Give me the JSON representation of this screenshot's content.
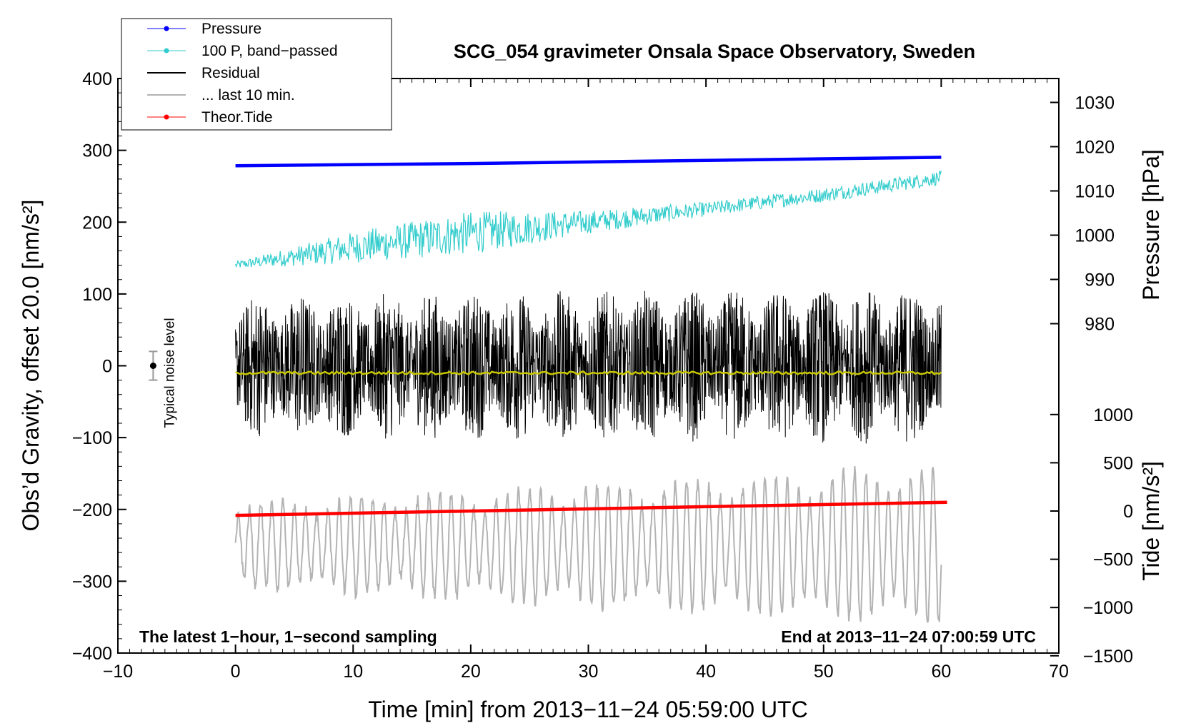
{
  "chart_data": {
    "type": "line",
    "title": "SCG_054 gravimeter Onsala Space Observatory, Sweden",
    "xlabel": "Time [min] from 2013−11−24 05:59:00 UTC",
    "xlim": [
      -10,
      70
    ],
    "x_ticks": [
      -10,
      0,
      10,
      20,
      30,
      40,
      50,
      60,
      70
    ],
    "x_tick_labels": [
      "−10",
      "0",
      "10",
      "20",
      "30",
      "40",
      "50",
      "60",
      "70"
    ],
    "ylabel_left": "Obs’d Gravity, offset 20.0 [nm/s²]",
    "ylim_left": [
      -400,
      400
    ],
    "y_ticks_left": [
      -400,
      -300,
      -200,
      -100,
      0,
      100,
      200,
      300,
      400
    ],
    "y_tick_labels_left": [
      "−400",
      "−300",
      "−200",
      "−100",
      "0",
      "100",
      "200",
      "300",
      "400"
    ],
    "ylabel_right_top": "Pressure [hPa]",
    "y_ticks_right_top": [
      980,
      990,
      1000,
      1010,
      1020,
      1030
    ],
    "y_tick_labels_right_top": [
      "980",
      "990",
      "1000",
      "1010",
      "1020",
      "1030"
    ],
    "ylabel_right_bottom": "Tide [nm/s²]",
    "y_ticks_right_bottom": [
      -1500,
      -1000,
      -500,
      0,
      500,
      1000
    ],
    "y_tick_labels_right_bottom": [
      "−1500",
      "−1000",
      "−500",
      "0",
      "500",
      "1000"
    ],
    "series": [
      {
        "name": "Pressure",
        "color": "#0000ff",
        "axis": "pressure_hPa",
        "x": [
          0,
          20,
          40,
          60
        ],
        "values": [
          1015.7,
          1016.2,
          1016.9,
          1017.6
        ]
      },
      {
        "name": "100 P, band−passed",
        "color": "#33cccc",
        "axis": "left_nm_s2",
        "x": [
          0,
          10,
          20,
          30,
          40,
          50,
          60
        ],
        "values": [
          140,
          165,
          185,
          200,
          218,
          238,
          262
        ],
        "oscillation_amplitude": [
          5,
          22,
          30,
          16,
          10,
          10,
          10
        ]
      },
      {
        "name": "Residual",
        "color": "#000000",
        "axis": "left_nm_s2",
        "x": [
          0,
          60
        ],
        "values": [
          0,
          0
        ],
        "oscillation_amplitude": [
          100,
          110
        ]
      },
      {
        "name": "... last 10 min.",
        "color": "#b3b3b3",
        "axis": "left_nm_s2",
        "x": [
          0,
          60
        ],
        "values": [
          -250,
          -250
        ],
        "oscillation_amplitude": [
          60,
          110
        ]
      },
      {
        "name": "Theor.Tide",
        "color": "#ff0000",
        "axis": "tide_nm_s2",
        "x": [
          0,
          20,
          40,
          60.5
        ],
        "values": [
          -45,
          0,
          45,
          90
        ]
      },
      {
        "name": "mean residual",
        "color": "#cccc00",
        "axis": "left_nm_s2",
        "x": [
          0,
          60
        ],
        "values": [
          -10,
          -10
        ],
        "in_legend": false
      }
    ],
    "noise_indicator": {
      "label": "Typical noise level",
      "x": -7,
      "center": 0,
      "half_range": 20
    },
    "annotations": [
      "The latest 1−hour, 1−second sampling",
      "End at 2013−11−24 07:00:59 UTC"
    ]
  }
}
